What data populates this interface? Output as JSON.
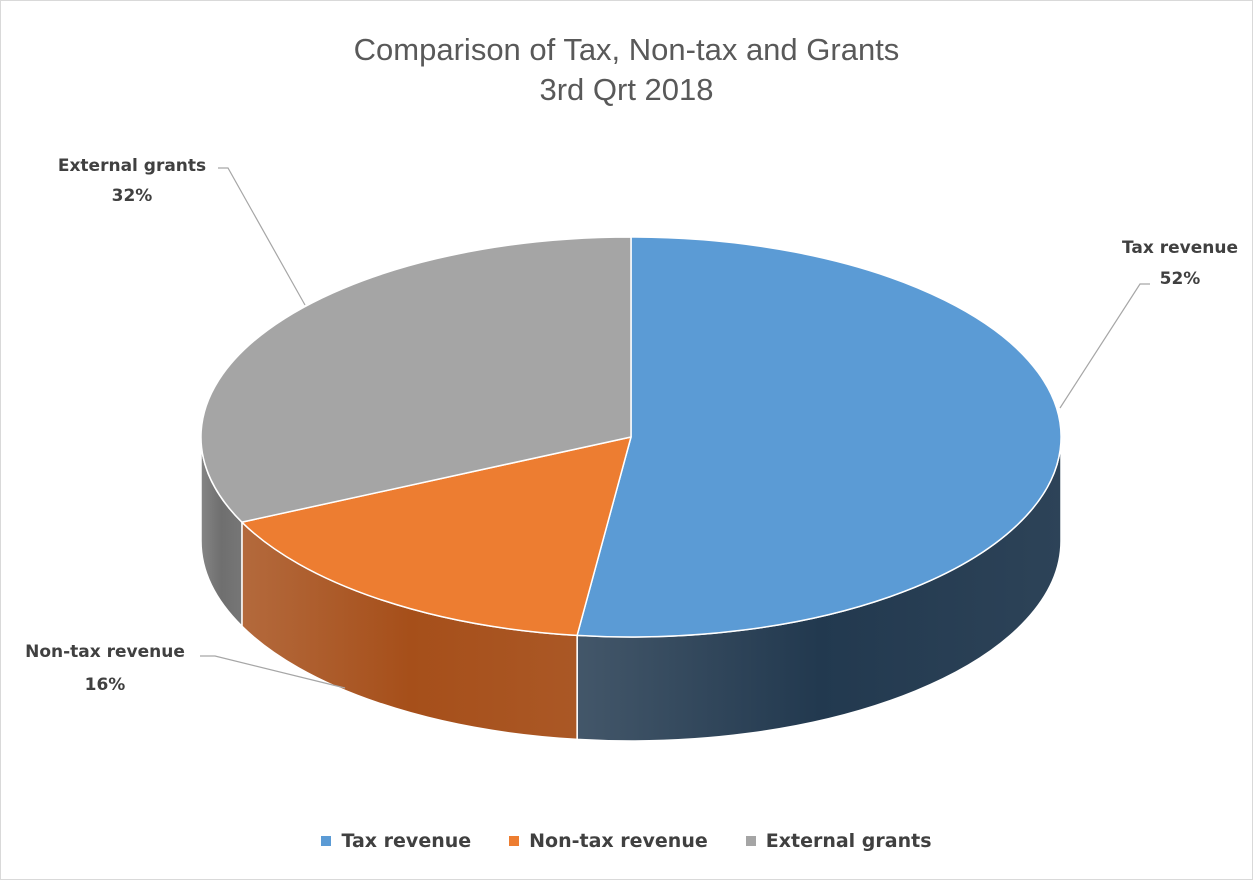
{
  "chart_data": {
    "type": "pie",
    "title": [
      "Comparison of Tax, Non-tax and Grants",
      "3rd Qrt 2018"
    ],
    "slices": [
      {
        "name": "Tax revenue",
        "percent_label": "52%",
        "value": 52,
        "color": "#5b9bd5",
        "side_color": "#22394f"
      },
      {
        "name": "Non-tax revenue",
        "percent_label": "16%",
        "value": 16,
        "color": "#ed7d31",
        "side_color": "#a64f1a"
      },
      {
        "name": "External grants",
        "percent_label": "32%",
        "value": 32,
        "color": "#a5a5a5",
        "side_color": "#6f6f6f"
      }
    ],
    "legend_position": "bottom",
    "style": "3d-pie"
  }
}
